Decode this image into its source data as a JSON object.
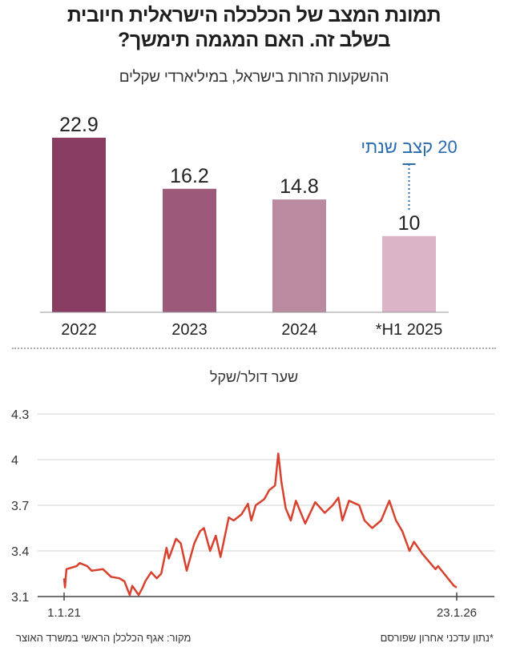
{
  "title_lines": [
    "תמונת המצב של הכלכלה הישראלית חיובית",
    "בשלב זה. האם המגמה תימשך?"
  ],
  "footnote": "*נתון עדכני אחרון שפורסם",
  "source": "מקור: אגף הכלכלן הראשי במשרד האוצר",
  "chart_data": [
    {
      "type": "bar",
      "title": "ההשקעות הזרות בישראל, במיליארדי שקלים",
      "categories": [
        "2022",
        "2023",
        "2024",
        "*H1 2025"
      ],
      "values": [
        22.9,
        16.2,
        14.8,
        10
      ],
      "value_labels": [
        "22.9",
        "16.2",
        "14.8",
        "10"
      ],
      "colors": [
        "#8a3d62",
        "#9d5979",
        "#b98aa0",
        "#dcb4c7"
      ],
      "annotation": {
        "category": "*H1 2025",
        "value": 20,
        "label": "20 קצב שנתי",
        "color": "#2a6bb0"
      },
      "ylim": [
        0,
        22.9
      ],
      "grid": false
    },
    {
      "type": "line",
      "title": "שער דולר/שקל",
      "color": "#d9412f",
      "ylim": [
        3.1,
        4.3
      ],
      "yticks": [
        3.1,
        3.4,
        3.7,
        4,
        4.3
      ],
      "ytick_labels": [
        "3.1",
        "3.4",
        "3.7",
        "4",
        "4.3"
      ],
      "xlim": [
        "2021-01-01",
        "2026-01-23"
      ],
      "xtick_labels": [
        "1.1.21",
        "23.1.26"
      ],
      "grid": true,
      "points": [
        [
          "2021-01-01",
          3.22
        ],
        [
          "2021-01-05",
          3.16
        ],
        [
          "2021-01-12",
          3.28
        ],
        [
          "2021-03-01",
          3.3
        ],
        [
          "2021-03-15",
          3.32
        ],
        [
          "2021-04-20",
          3.3
        ],
        [
          "2021-05-10",
          3.27
        ],
        [
          "2021-07-03",
          3.28
        ],
        [
          "2021-08-10",
          3.23
        ],
        [
          "2021-09-18",
          3.22
        ],
        [
          "2021-10-12",
          3.2
        ],
        [
          "2021-11-06",
          3.11
        ],
        [
          "2021-11-18",
          3.17
        ],
        [
          "2021-12-18",
          3.11
        ],
        [
          "2022-01-06",
          3.16
        ],
        [
          "2022-01-18",
          3.2
        ],
        [
          "2022-02-15",
          3.26
        ],
        [
          "2022-03-13",
          3.22
        ],
        [
          "2022-04-03",
          3.25
        ],
        [
          "2022-04-28",
          3.42
        ],
        [
          "2022-05-09",
          3.35
        ],
        [
          "2022-06-12",
          3.48
        ],
        [
          "2022-07-04",
          3.45
        ],
        [
          "2022-08-01",
          3.27
        ],
        [
          "2022-09-06",
          3.45
        ],
        [
          "2022-10-03",
          3.53
        ],
        [
          "2022-10-21",
          3.55
        ],
        [
          "2022-11-19",
          3.4
        ],
        [
          "2022-12-16",
          3.5
        ],
        [
          "2023-01-07",
          3.36
        ],
        [
          "2023-02-15",
          3.62
        ],
        [
          "2023-03-10",
          3.6
        ],
        [
          "2023-04-16",
          3.64
        ],
        [
          "2023-05-16",
          3.71
        ],
        [
          "2023-06-01",
          3.6
        ],
        [
          "2023-06-22",
          3.7
        ],
        [
          "2023-08-01",
          3.74
        ],
        [
          "2023-08-25",
          3.8
        ],
        [
          "2023-09-21",
          3.83
        ],
        [
          "2023-10-06",
          4.04
        ],
        [
          "2023-10-21",
          3.85
        ],
        [
          "2023-11-10",
          3.68
        ],
        [
          "2023-12-04",
          3.6
        ],
        [
          "2023-12-28",
          3.73
        ],
        [
          "2024-02-10",
          3.58
        ],
        [
          "2024-03-28",
          3.72
        ],
        [
          "2024-05-12",
          3.65
        ],
        [
          "2024-06-18",
          3.7
        ],
        [
          "2024-07-15",
          3.75
        ],
        [
          "2024-08-03",
          3.6
        ],
        [
          "2024-09-03",
          3.73
        ],
        [
          "2024-10-21",
          3.7
        ],
        [
          "2024-11-15",
          3.6
        ],
        [
          "2024-12-21",
          3.55
        ],
        [
          "2025-02-01",
          3.6
        ],
        [
          "2025-03-12",
          3.73
        ],
        [
          "2025-04-12",
          3.6
        ],
        [
          "2025-05-12",
          3.53
        ],
        [
          "2025-06-15",
          3.4
        ],
        [
          "2025-07-06",
          3.46
        ],
        [
          "2025-08-15",
          3.38
        ],
        [
          "2025-10-15",
          3.28
        ],
        [
          "2025-10-27",
          3.3
        ],
        [
          "2026-01-10",
          3.17
        ],
        [
          "2026-01-23",
          3.16
        ]
      ]
    }
  ]
}
